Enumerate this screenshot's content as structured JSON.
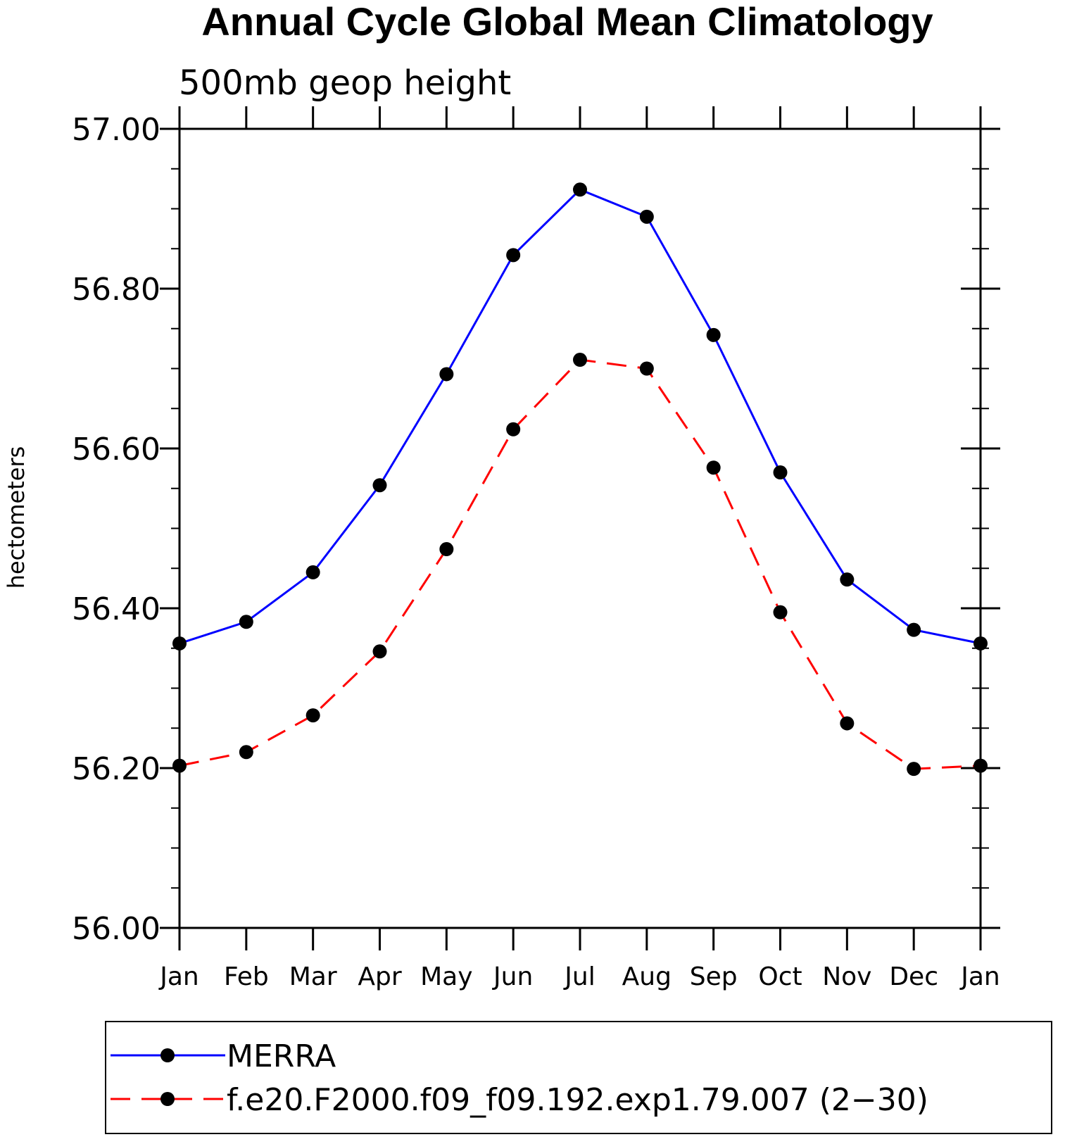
{
  "chart_data": {
    "type": "line",
    "title": "Annual Cycle Global Mean Climatology",
    "subtitle": "500mb geop height",
    "ylabel": "hectometers",
    "xlabel": "",
    "categories": [
      "Jan",
      "Feb",
      "Mar",
      "Apr",
      "May",
      "Jun",
      "Jul",
      "Aug",
      "Sep",
      "Oct",
      "Nov",
      "Dec",
      "Jan"
    ],
    "ylim": [
      56.0,
      57.0
    ],
    "yticks": [
      "56.00",
      "56.20",
      "56.40",
      "56.60",
      "56.80",
      "57.00"
    ],
    "grid": false,
    "legend_position": "bottom",
    "series": [
      {
        "name": "MERRA",
        "color": "#0000ff",
        "dash": "solid",
        "marker": "filled-circle",
        "values": [
          56.356,
          56.383,
          56.445,
          56.554,
          56.693,
          56.842,
          56.924,
          56.89,
          56.742,
          56.57,
          56.436,
          56.373,
          56.356
        ]
      },
      {
        "name": "f.e20.F2000.f09_f09.192.exp1.79.007 (2−30)",
        "color": "#ff0000",
        "dash": "dashed",
        "marker": "filled-circle",
        "values": [
          56.203,
          56.22,
          56.266,
          56.346,
          56.474,
          56.624,
          56.711,
          56.7,
          56.576,
          56.395,
          56.256,
          56.199,
          56.203
        ]
      }
    ]
  }
}
